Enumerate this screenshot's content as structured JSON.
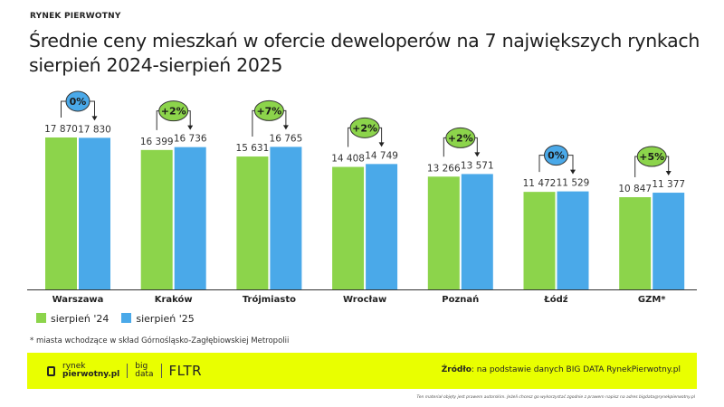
{
  "header": {
    "kicker": "RYNEK PIERWOTNY",
    "title_line1": "Średnie ceny mieszkań w ofercie deweloperów na 7 największych rynkach",
    "title_line2": "sierpień 2024-sierpień 2025"
  },
  "chart_data": {
    "type": "bar",
    "categories": [
      "Warszawa",
      "Kraków",
      "Trójmiasto",
      "Wrocław",
      "Poznań",
      "Łódź",
      "GZM*"
    ],
    "series": [
      {
        "name": "sierpień '24",
        "color": "#8cd44b",
        "values": [
          17870,
          16399,
          15631,
          14408,
          13266,
          11472,
          10847
        ],
        "labels": [
          "17 870",
          "16 399",
          "15 631",
          "14 408",
          "13 266",
          "11 472",
          "10 847"
        ]
      },
      {
        "name": "sierpień '25",
        "color": "#4aa9e9",
        "values": [
          17830,
          16736,
          16765,
          14749,
          13571,
          11529,
          11377
        ],
        "labels": [
          "17 830",
          "16 736",
          "16 765",
          "14 749",
          "13 571",
          "11 529",
          "11 377"
        ]
      }
    ],
    "changes": [
      "0%",
      "+2%",
      "+7%",
      "+2%",
      "+2%",
      "0%",
      "+5%"
    ],
    "change_colors": {
      "neutral": "#4aa9e9",
      "positive": "#8cd44b"
    },
    "ylim": [
      0,
      20000
    ],
    "grid": false,
    "legend_placement": "bottom-left"
  },
  "legend": {
    "items": [
      "sierpień '24",
      "sierpień '25"
    ]
  },
  "note": "* miasta wchodzące w skład Górnośląsko-Zagłębiowskiej Metropolii",
  "footer": {
    "logo_text1": "rynek",
    "logo_text2": "pierwotny.pl",
    "logo_big1": "big",
    "logo_big2": "data",
    "logo_fltr": "FLTR",
    "source_label": "Źródło",
    "source_text": ": na podstawie danych BIG DATA RynekPierwotny.pl",
    "copyright": "Ten materiał objęty jest prawem autorskim. Jeżeli chcesz go wykorzystać zgodnie z prawem napisz na adres bigdata@rynekpierwotny.pl"
  },
  "colors": {
    "accent": "#e9ff00"
  }
}
